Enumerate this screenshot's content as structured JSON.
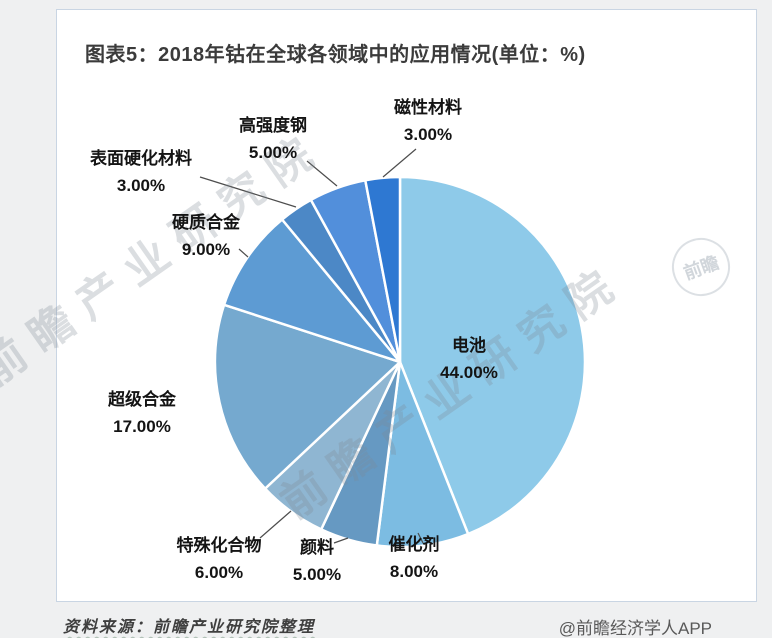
{
  "title": "图表5：2018年钴在全球各领域中的应用情况(单位：%)",
  "footer": {
    "source": "资料来源：前瞻产业研究院整理",
    "credit": "@前瞻经济学人APP"
  },
  "watermark": {
    "text": "前瞻产业研究院",
    "badge": "前瞻"
  },
  "chart_data": {
    "type": "pie",
    "title": "2018年钴在全球各领域中的应用情况",
    "unit": "%",
    "start_angle_deg": 0,
    "direction": "clockwise",
    "legend_position": "none",
    "slices": [
      {
        "name": "电池",
        "value": 44,
        "pct_label": "44.00%",
        "color": "#8ECAE9"
      },
      {
        "name": "催化剂",
        "value": 8,
        "pct_label": "8.00%",
        "color": "#7CBCE2"
      },
      {
        "name": "颜料",
        "value": 5,
        "pct_label": "5.00%",
        "color": "#6699C2"
      },
      {
        "name": "特殊化合物",
        "value": 6,
        "pct_label": "6.00%",
        "color": "#8FB6D2"
      },
      {
        "name": "超级合金",
        "value": 17,
        "pct_label": "17.00%",
        "color": "#75A9CF"
      },
      {
        "name": "硬质合金",
        "value": 9,
        "pct_label": "9.00%",
        "color": "#5D9BD3"
      },
      {
        "name": "表面硬化材料",
        "value": 3,
        "pct_label": "3.00%",
        "color": "#4C88C6"
      },
      {
        "name": "高强度钢",
        "value": 5,
        "pct_label": "5.00%",
        "color": "#528FDB"
      },
      {
        "name": "磁性材料",
        "value": 3,
        "pct_label": "3.00%",
        "color": "#2E78D2"
      }
    ]
  }
}
